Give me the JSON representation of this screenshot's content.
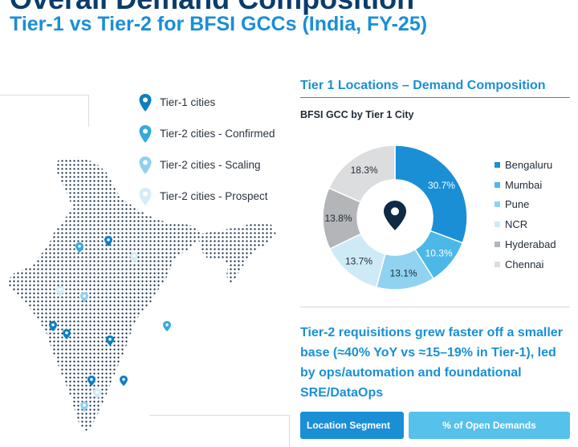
{
  "header": {
    "title": "Overall Demand Composition",
    "subtitle": "Tier-1 vs Tier-2 for BFSI GCCs (India, FY-25)"
  },
  "map_legend": [
    {
      "label": "Tier-1 cities",
      "color": "#0b7fc4"
    },
    {
      "label": "Tier-2 cities - Confirmed",
      "color": "#36a9dc"
    },
    {
      "label": "Tier-2 cities - Scaling",
      "color": "#8fd1ee"
    },
    {
      "label": "Tier-2 cities - Prospect",
      "color": "#d3edf8"
    }
  ],
  "right_panel": {
    "title": "Tier 1 Locations – Demand Composition",
    "chart_subtitle": "BFSI GCC by Tier 1 City"
  },
  "chart_data": {
    "type": "pie",
    "style": "donut",
    "title": "BFSI GCC by Tier 1 City",
    "categories": [
      "Bengaluru",
      "Mumbai",
      "Pune",
      "NCR",
      "Hyderabad",
      "Chennai"
    ],
    "values": [
      30.7,
      10.3,
      13.1,
      13.7,
      13.8,
      18.3
    ],
    "labels": [
      "30.7%",
      "10.3%",
      "13.1%",
      "13.7%",
      "13.8%",
      "18.3%"
    ],
    "colors": [
      "#1a8fd6",
      "#4cb8e8",
      "#8fd3f0",
      "#cfeaf7",
      "#b3b5b8",
      "#dcdddf"
    ],
    "label_colors": [
      "#ffffff",
      "#ffffff",
      "#1f2a36",
      "#1f2a36",
      "#1f2a36",
      "#1f2a36"
    ],
    "legend_position": "right"
  },
  "insight": {
    "text": "Tier-2 requisitions grew faster off a smaller base (≈40% YoY vs ≈15–19% in Tier-1), led by ops/automation and foundational SRE/DataOps"
  },
  "table": {
    "headers": [
      "Location Segment",
      "% of Open Demands"
    ]
  },
  "icons": {
    "center": "location-pin-icon"
  }
}
